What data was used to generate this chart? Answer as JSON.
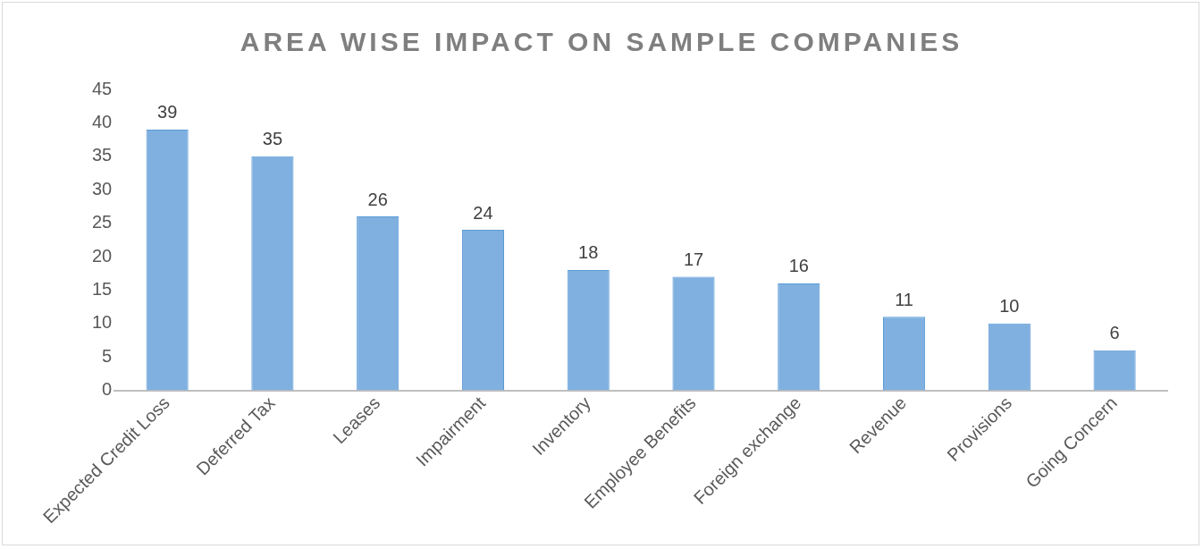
{
  "chart_data": {
    "type": "bar",
    "title": "AREA WISE IMPACT ON SAMPLE COMPANIES",
    "categories": [
      "Expected Credit Loss",
      "Deferred Tax",
      "Leases",
      "Impairment",
      "Inventory",
      "Employee Benefits",
      "Foreign exchange",
      "Revenue",
      "Provisions",
      "Going Concern"
    ],
    "values": [
      39,
      35,
      26,
      24,
      18,
      17,
      16,
      11,
      10,
      6
    ],
    "color": "#7fb0e0",
    "ylim": [
      0,
      45
    ],
    "yticks": [
      0,
      5,
      10,
      15,
      20,
      25,
      30,
      35,
      40,
      45
    ],
    "grid": false,
    "legend": false,
    "data_labels": true
  }
}
